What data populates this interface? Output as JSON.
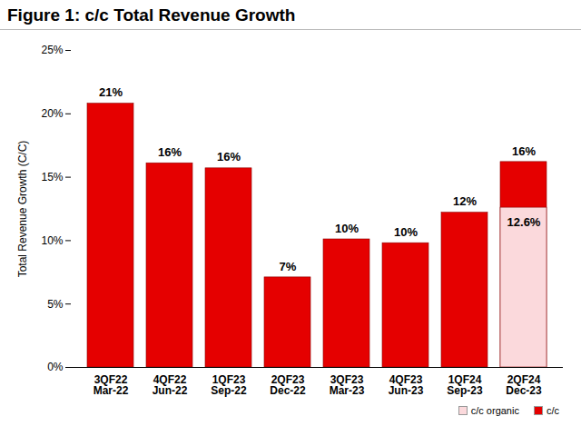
{
  "chart_data": {
    "type": "bar",
    "title": "Figure 1: c/c Total Revenue Growth",
    "y_label": "Total Revenue Growth (C/C)",
    "categories": [
      "3QF22\nMar-22",
      "4QF22\nJun-22",
      "1QF23\nSep-22",
      "2QF23\nDec-22",
      "3QF23\nMar-23",
      "4QF23\nJun-23",
      "1QF24\nSep-23",
      "2QF24\nDec-23"
    ],
    "series": [
      {
        "name": "c/c organic",
        "color": "#fbd9dc",
        "values": [
          null,
          null,
          null,
          null,
          null,
          null,
          null,
          12.6
        ],
        "value_labels": [
          null,
          null,
          null,
          null,
          null,
          null,
          null,
          "12.6%"
        ]
      },
      {
        "name": "c/c",
        "color": "#e50000",
        "values": [
          20.8,
          16.1,
          15.7,
          7.1,
          10.1,
          9.8,
          12.2,
          16.2
        ],
        "value_labels": [
          "21%",
          "16%",
          "16%",
          "7%",
          "10%",
          "10%",
          "12%",
          "16%"
        ]
      }
    ],
    "ylim": [
      0,
      25
    ],
    "yticks": [
      {
        "value": 0,
        "label": "0%"
      },
      {
        "value": 5,
        "label": "5%"
      },
      {
        "value": 10,
        "label": "10%"
      },
      {
        "value": 15,
        "label": "15%"
      },
      {
        "value": 20,
        "label": "20%"
      },
      {
        "value": 25,
        "label": "25%"
      }
    ],
    "grid": false,
    "stacked": false,
    "data_labels": true,
    "legend": "bottom-right"
  }
}
